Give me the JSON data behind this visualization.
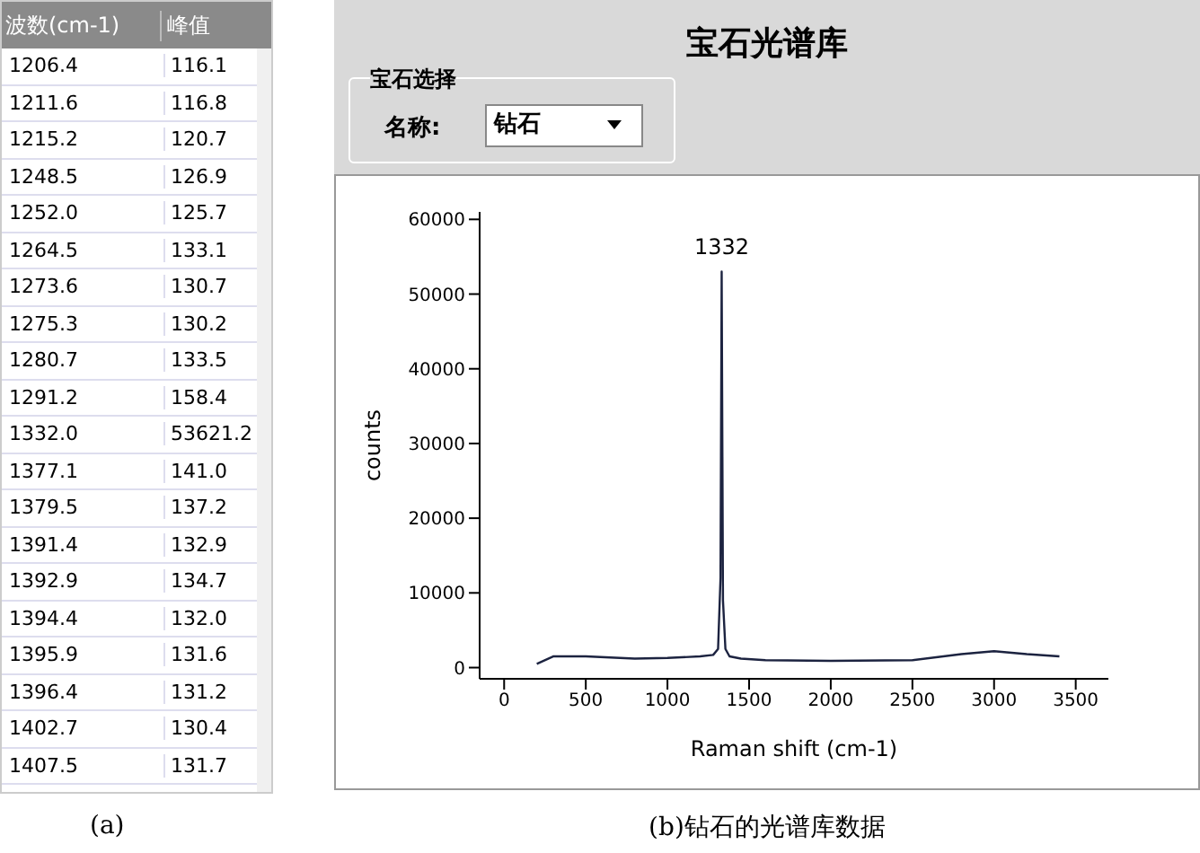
{
  "chart_data": [
    {
      "type": "other",
      "annotations": [
        "波数(cm-1)",
        "峰值",
        "(a)"
      ],
      "categories": [
        "1206.4",
        "1211.6",
        "1215.2",
        "1248.5",
        "1252.0",
        "1264.5",
        "1273.6",
        "1275.3",
        "1280.7",
        "1291.2",
        "1332.0",
        "1377.1",
        "1379.5",
        "1391.4",
        "1392.9",
        "1394.4",
        "1395.9",
        "1396.4",
        "1402.7",
        "1407.5"
      ],
      "values": [
        116.1,
        116.8,
        120.7,
        126.9,
        125.7,
        133.1,
        130.7,
        130.2,
        133.5,
        158.4,
        53621.2,
        141.0,
        137.2,
        132.9,
        134.7,
        132.0,
        131.6,
        131.2,
        130.4,
        131.7
      ],
      "data_labels": true,
      "value_labels": [
        "116.1",
        "116.8",
        "120.7",
        "126.9",
        "125.7",
        "133.1",
        "130.7",
        "130.2",
        "133.5",
        "158.4",
        "53621.2",
        "141.0",
        "137.2",
        "132.9",
        "134.7",
        "132.0",
        "131.6",
        "131.2",
        "130.4",
        "131.7"
      ]
    },
    {
      "type": "line",
      "title": "宝石光谱库",
      "xlabel": "Raman shift (cm-1)",
      "ylabel": "counts",
      "annotations": [
        "宝石选择",
        "名称:",
        "钻石",
        {
          "text": "1332",
          "x": 1332,
          "y": 53000
        },
        "(b)钻石的光谱库数据"
      ],
      "x": [
        200,
        300,
        500,
        800,
        1000,
        1200,
        1280,
        1310,
        1325,
        1332,
        1340,
        1355,
        1380,
        1450,
        1600,
        2000,
        2500,
        2800,
        3000,
        3200,
        3400
      ],
      "series": [
        {
          "color": "#1c2340",
          "values": [
            500,
            1500,
            1500,
            1200,
            1300,
            1500,
            1700,
            2500,
            12000,
            53000,
            9000,
            2500,
            1500,
            1200,
            1000,
            900,
            1000,
            1800,
            2200,
            1800,
            1500
          ]
        }
      ],
      "xlim": [
        -150,
        3700
      ],
      "ylim": [
        -1500,
        61000
      ],
      "xticks": [
        0,
        500,
        1000,
        1500,
        2000,
        2500,
        3000,
        3500
      ],
      "yticks": [
        0,
        10000,
        20000,
        30000,
        40000,
        50000,
        60000
      ],
      "marker": "none",
      "line_style": "solid"
    }
  ]
}
